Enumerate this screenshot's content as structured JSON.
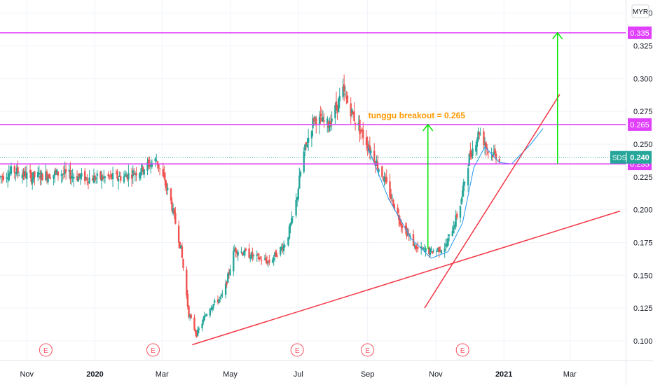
{
  "chart_data": {
    "type": "candlestick",
    "symbol": "SDS",
    "currency": "MYR",
    "last_price": 0.24,
    "last_price_label": "0.240",
    "ylim": [
      0.085,
      0.36
    ],
    "y_ticks": [
      0.1,
      0.125,
      0.15,
      0.175,
      0.2,
      0.225,
      0.25,
      0.275,
      0.3,
      0.325,
      0.35
    ],
    "y_tick_labels": [
      "0.100",
      "0.125",
      "0.150",
      "0.175",
      "0.200",
      "0.225",
      "0.250",
      "0.275",
      "0.300",
      "0.325",
      "0.350"
    ],
    "x_labels": [
      {
        "label": "Nov",
        "date": "2019-11-01",
        "bold": false
      },
      {
        "label": "2020",
        "date": "2020-01-01",
        "bold": true
      },
      {
        "label": "Mar",
        "date": "2020-03-01",
        "bold": false
      },
      {
        "label": "May",
        "date": "2020-05-01",
        "bold": false
      },
      {
        "label": "Jul",
        "date": "2020-07-01",
        "bold": false
      },
      {
        "label": "Sep",
        "date": "2020-09-01",
        "bold": false
      },
      {
        "label": "Nov",
        "date": "2020-11-01",
        "bold": false
      },
      {
        "label": "2021",
        "date": "2021-01-01",
        "bold": true
      },
      {
        "label": "Mar",
        "date": "2021-03-01",
        "bold": false
      }
    ],
    "xlim": [
      "2019-10-08",
      "2021-04-20"
    ],
    "horizontal_levels": [
      {
        "value": 0.335,
        "label": "0.335",
        "color": "#e040fb"
      },
      {
        "value": 0.265,
        "label": "0.265",
        "color": "#e040fb"
      },
      {
        "value": 0.235,
        "label": "0.235",
        "color": "#e040fb"
      }
    ],
    "price_path": [
      [
        "2019-10-08",
        0.225
      ],
      [
        "2019-10-20",
        0.23
      ],
      [
        "2019-11-05",
        0.225
      ],
      [
        "2019-12-01",
        0.228
      ],
      [
        "2019-12-25",
        0.224
      ],
      [
        "2020-01-25",
        0.225
      ],
      [
        "2020-02-10",
        0.23
      ],
      [
        "2020-02-25",
        0.238
      ],
      [
        "2020-03-08",
        0.21
      ],
      [
        "2020-03-18",
        0.17
      ],
      [
        "2020-03-25",
        0.12
      ],
      [
        "2020-04-01",
        0.105
      ],
      [
        "2020-04-12",
        0.125
      ],
      [
        "2020-04-25",
        0.135
      ],
      [
        "2020-05-05",
        0.17
      ],
      [
        "2020-05-20",
        0.165
      ],
      [
        "2020-06-05",
        0.16
      ],
      [
        "2020-06-20",
        0.175
      ],
      [
        "2020-06-28",
        0.2
      ],
      [
        "2020-07-05",
        0.24
      ],
      [
        "2020-07-15",
        0.27
      ],
      [
        "2020-07-28",
        0.265
      ],
      [
        "2020-08-10",
        0.29
      ],
      [
        "2020-08-20",
        0.27
      ],
      [
        "2020-09-01",
        0.25
      ],
      [
        "2020-09-15",
        0.225
      ],
      [
        "2020-10-01",
        0.19
      ],
      [
        "2020-10-15",
        0.17
      ],
      [
        "2020-10-28",
        0.168
      ],
      [
        "2020-11-10",
        0.172
      ],
      [
        "2020-11-22",
        0.2
      ],
      [
        "2020-12-01",
        0.24
      ],
      [
        "2020-12-10",
        0.26
      ],
      [
        "2020-12-18",
        0.245
      ],
      [
        "2020-12-28",
        0.24
      ]
    ],
    "trendlines": [
      {
        "from": [
          "2020-03-28",
          0.097
        ],
        "to": [
          "2021-04-15",
          0.199
        ],
        "color": "#f23645"
      },
      {
        "from": [
          "2020-10-22",
          0.125
        ],
        "to": [
          "2021-02-20",
          0.288
        ],
        "color": "#f23645"
      }
    ],
    "arrows": [
      {
        "x": "2020-10-25",
        "from": 0.17,
        "to": 0.265,
        "color": "#00e600"
      },
      {
        "x": "2021-02-18",
        "from": 0.235,
        "to": 0.335,
        "color": "#00e600"
      }
    ],
    "annotation": {
      "text": "tunggu breakout = 0.265",
      "date": "2020-10-15",
      "value": 0.272,
      "color": "#ff9800"
    },
    "earnings_markers": [
      {
        "date": "2019-11-18",
        "label": "E"
      },
      {
        "date": "2020-02-22",
        "label": "E"
      },
      {
        "date": "2020-06-30",
        "label": "E"
      },
      {
        "date": "2020-09-01",
        "label": "E"
      },
      {
        "date": "2020-11-25",
        "label": "E"
      }
    ]
  }
}
